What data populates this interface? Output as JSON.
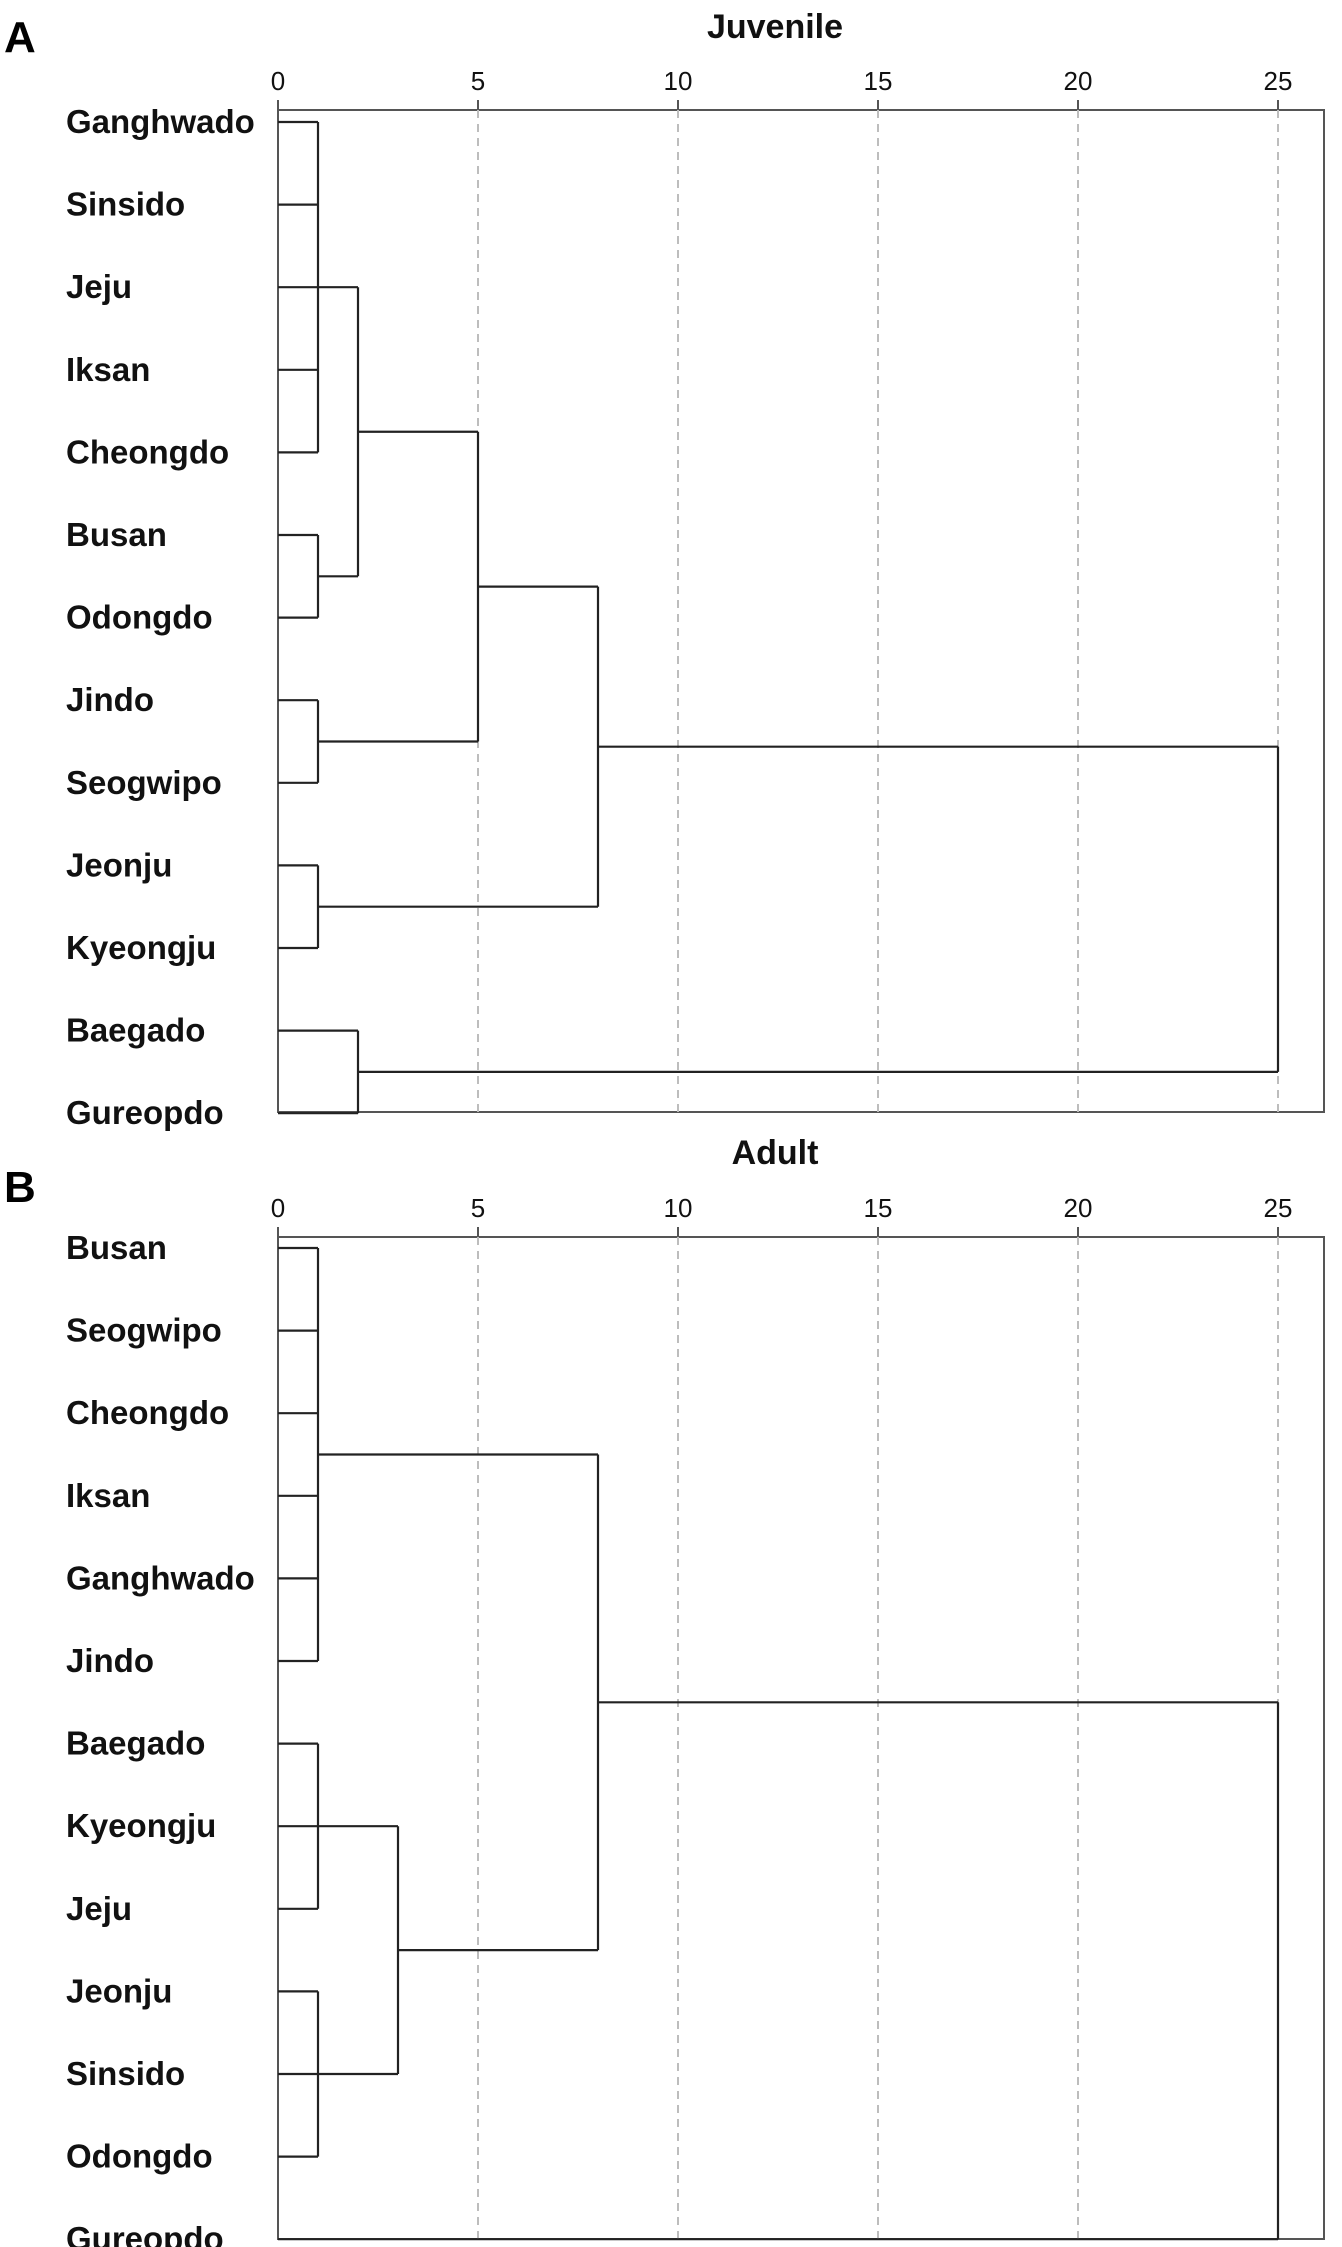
{
  "chart_data": [
    {
      "type": "dendrogram",
      "panel_letter": "A",
      "title": "Juvenile",
      "xlim": [
        0,
        25
      ],
      "ticks": [
        0,
        5,
        10,
        15,
        20,
        25
      ],
      "tick_labels": [
        "0",
        "5",
        "10",
        "15",
        "20",
        "25"
      ],
      "grid": true,
      "leaves": [
        "Ganghwado",
        "Sinsido",
        "Jeju",
        "Iksan",
        "Cheongdo",
        "Busan",
        "Odongdo",
        "Jindo",
        "Seogwipo",
        "Jeonju",
        "Kyeongju",
        "Baegado",
        "Gureopdo"
      ],
      "merges": [
        {
          "members": [
            "Ganghwado",
            "Sinsido",
            "Jeju",
            "Iksan",
            "Cheongdo"
          ],
          "height": 1
        },
        {
          "members": [
            "Busan",
            "Odongdo"
          ],
          "height": 1
        },
        {
          "members": [
            "Jindo",
            "Seogwipo"
          ],
          "height": 1
        },
        {
          "members": [
            "Jeonju",
            "Kyeongju"
          ],
          "height": 1
        },
        {
          "members": [
            "Ganghwado",
            "Sinsido",
            "Jeju",
            "Iksan",
            "Cheongdo",
            "Busan",
            "Odongdo"
          ],
          "height": 2
        },
        {
          "members": [
            "Baegado",
            "Gureopdo"
          ],
          "height": 2
        },
        {
          "members": [
            "Ganghwado",
            "Sinsido",
            "Jeju",
            "Iksan",
            "Cheongdo",
            "Busan",
            "Odongdo",
            "Jindo",
            "Seogwipo"
          ],
          "height": 5
        },
        {
          "members": [
            "Ganghwado",
            "Sinsido",
            "Jeju",
            "Iksan",
            "Cheongdo",
            "Busan",
            "Odongdo",
            "Jindo",
            "Seogwipo",
            "Jeonju",
            "Kyeongju"
          ],
          "height": 8
        },
        {
          "members": [
            "Ganghwado",
            "Sinsido",
            "Jeju",
            "Iksan",
            "Cheongdo",
            "Busan",
            "Odongdo",
            "Jindo",
            "Seogwipo",
            "Jeonju",
            "Kyeongju",
            "Baegado",
            "Gureopdo"
          ],
          "height": 25
        }
      ]
    },
    {
      "type": "dendrogram",
      "panel_letter": "B",
      "title": "Adult",
      "xlim": [
        0,
        25
      ],
      "ticks": [
        0,
        5,
        10,
        15,
        20,
        25
      ],
      "tick_labels": [
        "0",
        "5",
        "10",
        "15",
        "20",
        "25"
      ],
      "grid": true,
      "leaves": [
        "Busan",
        "Seogwipo",
        "Cheongdo",
        "Iksan",
        "Ganghwado",
        "Jindo",
        "Baegado",
        "Kyeongju",
        "Jeju",
        "Jeonju",
        "Sinsido",
        "Odongdo",
        "Gureopdo"
      ],
      "merges": [
        {
          "members": [
            "Busan",
            "Seogwipo",
            "Cheongdo",
            "Iksan",
            "Ganghwado",
            "Jindo"
          ],
          "height": 1
        },
        {
          "members": [
            "Baegado",
            "Kyeongju",
            "Jeju"
          ],
          "height": 1
        },
        {
          "members": [
            "Jeonju",
            "Sinsido",
            "Odongdo"
          ],
          "height": 1
        },
        {
          "members": [
            "Baegado",
            "Kyeongju",
            "Jeju",
            "Jeonju",
            "Sinsido",
            "Odongdo"
          ],
          "height": 3
        },
        {
          "members": [
            "Busan",
            "Seogwipo",
            "Cheongdo",
            "Iksan",
            "Ganghwado",
            "Jindo",
            "Baegado",
            "Kyeongju",
            "Jeju",
            "Jeonju",
            "Sinsido",
            "Odongdo"
          ],
          "height": 8
        },
        {
          "members": [
            "Busan",
            "Seogwipo",
            "Cheongdo",
            "Iksan",
            "Ganghwado",
            "Jindo",
            "Baegado",
            "Kyeongju",
            "Jeju",
            "Jeonju",
            "Sinsido",
            "Odongdo",
            "Gureopdo"
          ],
          "height": 25
        }
      ]
    }
  ]
}
